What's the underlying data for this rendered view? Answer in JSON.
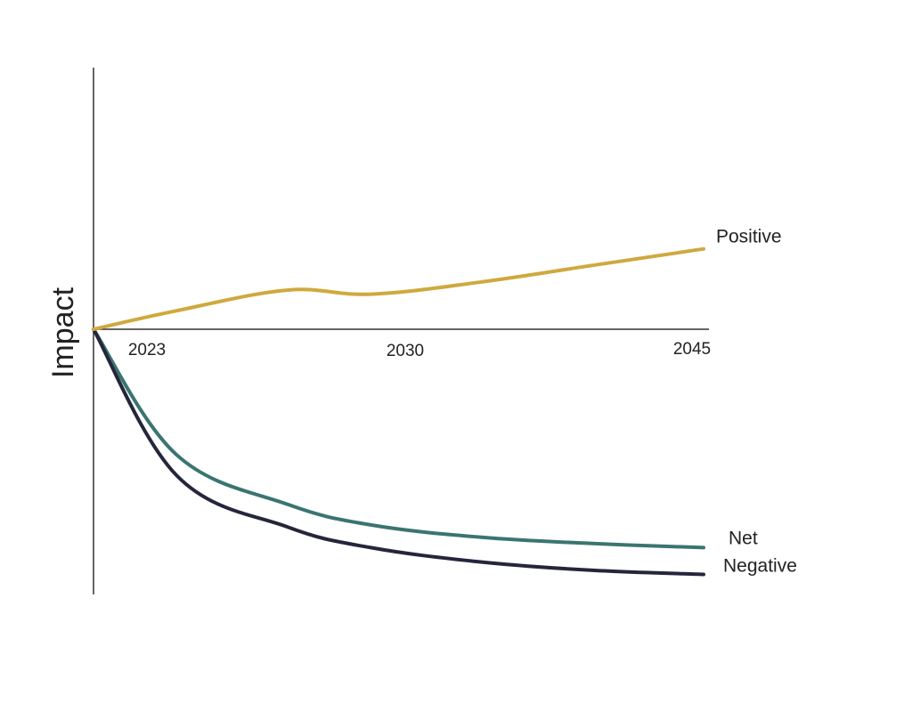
{
  "chart_data": {
    "type": "line",
    "title": "",
    "xlabel": "",
    "ylabel": "Impact",
    "x_ticks": [
      "2023",
      "2030",
      "2045"
    ],
    "x": [
      2023,
      2026,
      2030,
      2033,
      2037,
      2041,
      2045
    ],
    "ylim": [
      -6,
      6.5
    ],
    "grid": false,
    "series": [
      {
        "name": "Positive",
        "color": "#cfa93e",
        "values": [
          0,
          0.45,
          0.95,
          0.85,
          1.15,
          1.55,
          1.95
        ]
      },
      {
        "name": "Net",
        "color": "#3a7570",
        "values": [
          0,
          -3.05,
          -4.25,
          -4.75,
          -5.05,
          -5.2,
          -5.3
        ]
      },
      {
        "name": "Negative",
        "color": "#25263b",
        "values": [
          0,
          -3.55,
          -4.8,
          -5.3,
          -5.65,
          -5.85,
          -5.95
        ]
      }
    ]
  }
}
